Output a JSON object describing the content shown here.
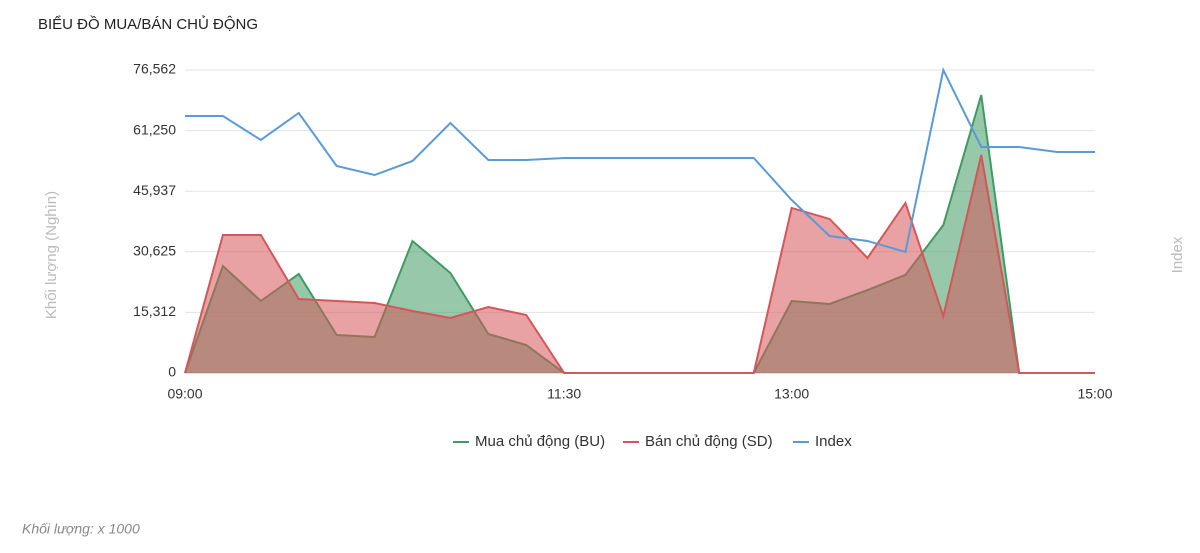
{
  "chart_data": {
    "type": "area-line",
    "title": "BIỂU ĐỒ MUA/BÁN CHỦ ĐỘNG",
    "y_label": "Khối lượng (Nghìn)",
    "y2_label": "Index",
    "footnote": "Khối lượng: x 1000",
    "categories": [
      "09:00",
      null,
      null,
      null,
      null,
      null,
      null,
      null,
      null,
      null,
      "11:30",
      null,
      null,
      null,
      null,
      null,
      "13:00",
      null,
      null,
      null,
      null,
      null,
      null,
      null,
      "15:00"
    ],
    "ylim": [
      0,
      76562
    ],
    "yticks": [
      0,
      {
        "value": 15312,
        "label": "15,312"
      },
      {
        "value": 30625,
        "label": "30,625"
      },
      {
        "value": 45937,
        "label": "45,937"
      },
      {
        "value": 61250,
        "label": "61,250"
      },
      {
        "value": 76562,
        "label": "76,562"
      }
    ],
    "grid": true,
    "legend": "bottom",
    "series": [
      {
        "name": "Mua chủ động (BU)",
        "kind": "area",
        "color": "#3f9b63",
        "values": [
          0,
          27040,
          18190,
          25020,
          9600,
          9100,
          33360,
          25270,
          9860,
          7080,
          0,
          0,
          0,
          0,
          0,
          0,
          18190,
          17440,
          20970,
          24770,
          37400,
          70250,
          0,
          0,
          0
        ]
      },
      {
        "name": "Bán chủ động (SD)",
        "kind": "area",
        "color": "#d5565a",
        "values": [
          0,
          34870,
          34870,
          18700,
          18190,
          17690,
          15670,
          13900,
          16680,
          14660,
          0,
          0,
          0,
          0,
          0,
          0,
          41700,
          38920,
          29060,
          42960,
          14400,
          55090,
          0,
          0,
          0
        ]
      },
      {
        "name": "Index",
        "kind": "line",
        "color": "#5b9bd5",
        "values": [
          64940,
          64940,
          58880,
          65700,
          52310,
          50030,
          53570,
          63170,
          53820,
          53820,
          54330,
          54330,
          54330,
          54330,
          54330,
          54330,
          43710,
          34620,
          33360,
          30580,
          76562,
          57110,
          57110,
          55850,
          55850
        ]
      }
    ]
  }
}
